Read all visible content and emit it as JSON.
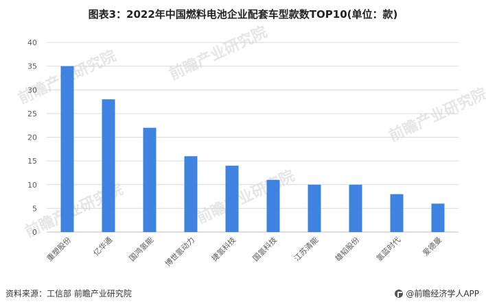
{
  "title": "图表3：2022年中国燃料电池企业配套车型款数TOP10(单位：款)",
  "footer": {
    "source": "资料来源：工信部 前瞻产业研究院",
    "brand": "@前瞻经济学人APP"
  },
  "watermark": "前瞻产业研究院",
  "colors": {
    "bar": "#3F83E0",
    "grid": "#D9D9D9",
    "axis": "#BFBFBF"
  },
  "chart_data": {
    "type": "bar",
    "title": "图表3：2022年中国燃料电池企业配套车型款数TOP10(单位：款)",
    "categories": [
      "重塑股份",
      "亿华通",
      "国鸿氢能",
      "博世氢动力",
      "捷氢科技",
      "国氢科技",
      "江苏清能",
      "雄韬股份",
      "氢蓝时代",
      "爱德曼"
    ],
    "values": [
      35,
      28,
      22,
      16,
      14,
      11,
      10,
      10,
      8,
      6
    ],
    "ylim": [
      0,
      40
    ],
    "yticks": [
      0,
      5,
      10,
      15,
      20,
      25,
      30,
      35,
      40
    ],
    "grid": true,
    "legend": "none",
    "xlabel": "",
    "ylabel": ""
  }
}
